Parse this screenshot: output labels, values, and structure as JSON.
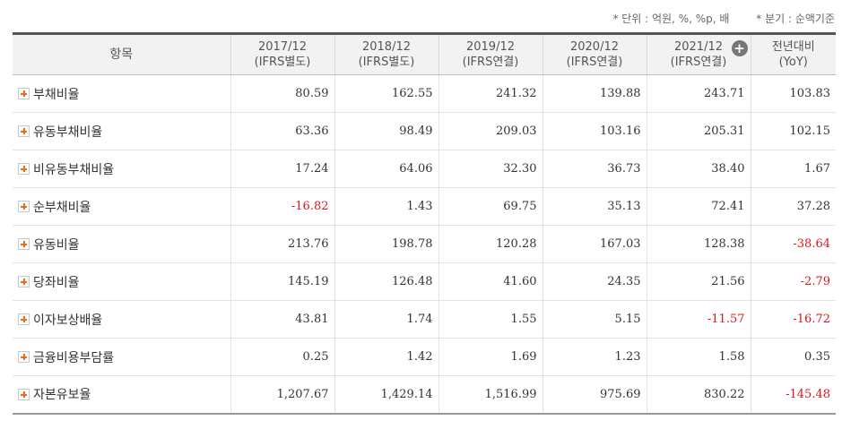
{
  "notes": {
    "unit": "* 단위 : 억원, %, %p, 배",
    "quarter": "* 분기 : 순액기준"
  },
  "header": {
    "item": "항목",
    "columns": [
      {
        "line1": "2017/12",
        "line2": "(IFRS별도)"
      },
      {
        "line1": "2018/12",
        "line2": "(IFRS별도)"
      },
      {
        "line1": "2019/12",
        "line2": "(IFRS연결)"
      },
      {
        "line1": "2020/12",
        "line2": "(IFRS연결)"
      },
      {
        "line1": "2021/12",
        "line2": "(IFRS연결)"
      },
      {
        "line1": "전년대비",
        "line2": "(YoY)"
      }
    ],
    "more_icon": "plus-circle-icon"
  },
  "rows": [
    {
      "label": "부채비율",
      "values": [
        "80.59",
        "162.55",
        "241.32",
        "139.88",
        "243.71",
        "103.83"
      ]
    },
    {
      "label": "유동부채비율",
      "values": [
        "63.36",
        "98.49",
        "209.03",
        "103.16",
        "205.31",
        "102.15"
      ]
    },
    {
      "label": "비유동부채비율",
      "values": [
        "17.24",
        "64.06",
        "32.30",
        "36.73",
        "38.40",
        "1.67"
      ]
    },
    {
      "label": "순부채비율",
      "values": [
        "-16.82",
        "1.43",
        "69.75",
        "35.13",
        "72.41",
        "37.28"
      ]
    },
    {
      "label": "유동비율",
      "values": [
        "213.76",
        "198.78",
        "120.28",
        "167.03",
        "128.38",
        "-38.64"
      ]
    },
    {
      "label": "당좌비율",
      "values": [
        "145.19",
        "126.48",
        "41.60",
        "24.35",
        "21.56",
        "-2.79"
      ]
    },
    {
      "label": "이자보상배율",
      "values": [
        "43.81",
        "1.74",
        "1.55",
        "5.15",
        "-11.57",
        "-16.72"
      ]
    },
    {
      "label": "금융비용부담률",
      "values": [
        "0.25",
        "1.42",
        "1.69",
        "1.23",
        "1.58",
        "0.35"
      ]
    },
    {
      "label": "자본유보율",
      "values": [
        "1,207.67",
        "1,429.14",
        "1,516.99",
        "975.69",
        "830.22",
        "-145.48"
      ]
    }
  ],
  "colors": {
    "negative": "#e0141c",
    "expand_icon": "#f06a1d"
  }
}
